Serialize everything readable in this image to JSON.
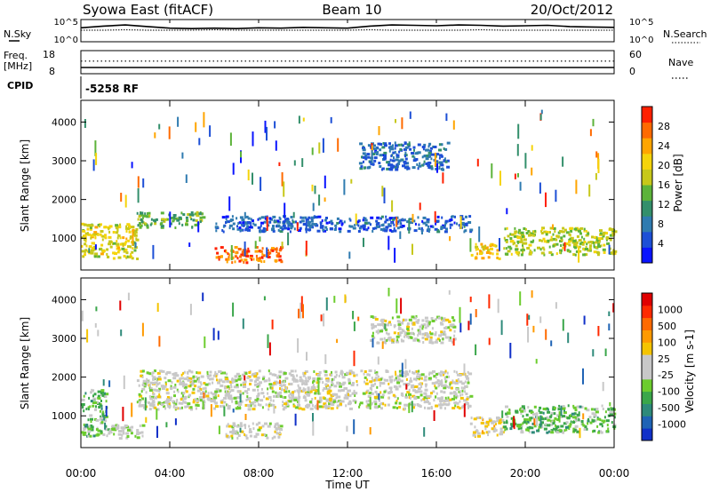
{
  "header": {
    "station": "Syowa East (fitACF)",
    "beam": "Beam 10",
    "date": "20/Oct/2012"
  },
  "side_labels": {
    "nsky": "N.Sky",
    "nsearch": "N.Search",
    "freq": "Freq.",
    "mhz": "[MHz]",
    "nave": "Nave",
    "cpid": "CPID",
    "cpid_value": "-5258 RF"
  },
  "chart_data": [
    {
      "type": "line",
      "panel": "noise",
      "ylabel_left": "N.Sky",
      "ylabel_right": "N.Search",
      "left_ticks": [
        "10^5",
        "10^0"
      ],
      "right_ticks": [
        "10^5",
        "10^0"
      ],
      "x": [
        0,
        1,
        2,
        3,
        4,
        5,
        6,
        7,
        8,
        9,
        10,
        11,
        12,
        13,
        14,
        15,
        16,
        17,
        18,
        19,
        20,
        21,
        22,
        23,
        24
      ],
      "nsky_log10": [
        3.2,
        3.6,
        3.9,
        3.5,
        3.1,
        3.0,
        3.1,
        3.0,
        3.2,
        3.1,
        3.3,
        3.2,
        3.1,
        3.6,
        3.9,
        3.8,
        3.7,
        3.9,
        3.8,
        3.6,
        3.7,
        3.8,
        3.5,
        3.4,
        3.3
      ],
      "nsearch_log10": [
        2.6,
        2.6,
        2.7,
        2.6,
        2.6,
        2.6,
        2.7,
        2.6,
        2.6,
        2.6,
        2.6,
        2.6,
        2.6,
        2.7,
        2.6,
        2.6,
        2.6,
        2.6,
        2.7,
        2.6,
        2.6,
        2.6,
        2.6,
        2.6,
        2.6
      ],
      "ylim_log10": [
        0,
        5
      ]
    },
    {
      "type": "line",
      "panel": "frequency",
      "ylabel_left": "Freq. [MHz]",
      "ylabel_right": "Nave",
      "left_ticks": [
        "18",
        "8"
      ],
      "right_ticks": [
        "60",
        "0"
      ],
      "freq_mhz": 10.5,
      "nave": 33,
      "freq_ylim": [
        8,
        18
      ],
      "nave_ylim": [
        0,
        60
      ]
    },
    {
      "type": "heatmap",
      "panel": "power",
      "ylabel": "Slant Range [km]",
      "yticks": [
        "4000",
        "3000",
        "2000",
        "1000"
      ],
      "ylim": [
        180,
        4560
      ],
      "colorbar_label": "Power [dB]",
      "colorbar_ticks": [
        "28",
        "24",
        "20",
        "16",
        "12",
        "8",
        "4"
      ],
      "colorbar_colors": [
        "#0a14ff",
        "#1d4fd6",
        "#2f7bb0",
        "#338f6b",
        "#5cb33a",
        "#c7c81a",
        "#f5d40b",
        "#ffa500",
        "#ff6a00",
        "#ff2000"
      ],
      "vmin": 0,
      "vmax": 32,
      "features": [
        {
          "t": [
            0.0,
            2.5
          ],
          "r": [
            500,
            1400
          ],
          "value": 19
        },
        {
          "t": [
            2.5,
            5.5
          ],
          "r": [
            1300,
            1700
          ],
          "value": 14
        },
        {
          "t": [
            6.0,
            9.0
          ],
          "r": [
            400,
            800
          ],
          "value": 27
        },
        {
          "t": [
            6.0,
            17.5
          ],
          "r": [
            1200,
            1600
          ],
          "value": 6
        },
        {
          "t": [
            12.5,
            16.5
          ],
          "r": [
            2800,
            3500
          ],
          "value": 7
        },
        {
          "t": [
            17.5,
            18.8
          ],
          "r": [
            500,
            900
          ],
          "value": 21
        },
        {
          "t": [
            19.0,
            24.0
          ],
          "r": [
            600,
            1300
          ],
          "value": 17
        }
      ]
    },
    {
      "type": "heatmap",
      "panel": "velocity",
      "ylabel": "Slant Range [km]",
      "yticks": [
        "4000",
        "3000",
        "2000",
        "1000"
      ],
      "ylim": [
        180,
        4560
      ],
      "colorbar_label": "Velocity [m s-1]",
      "colorbar_ticks": [
        "1000",
        "500",
        "100",
        "25",
        "-25",
        "-100",
        "-500",
        "-1000"
      ],
      "colorbar_colors": [
        "#1030c8",
        "#1f63b5",
        "#2e8a7a",
        "#3aa64a",
        "#6ccc2e",
        "#c8c8c8",
        "#c8c8c8",
        "#f5c400",
        "#ff9a00",
        "#ff6a00",
        "#ff2a00",
        "#e00000"
      ],
      "vmin": -1000,
      "vmax": 1000,
      "features": [
        {
          "t": [
            0.0,
            1.2
          ],
          "r": [
            500,
            1700
          ],
          "value": -300
        },
        {
          "t": [
            1.2,
            2.8
          ],
          "r": [
            450,
            800
          ],
          "value": -90
        },
        {
          "t": [
            2.5,
            17.5
          ],
          "r": [
            1200,
            2200
          ],
          "value": 0
        },
        {
          "t": [
            6.5,
            9.0
          ],
          "r": [
            450,
            850
          ],
          "value": 0
        },
        {
          "t": [
            13.0,
            16.8
          ],
          "r": [
            2900,
            3600
          ],
          "value": 0
        },
        {
          "t": [
            17.5,
            19.0
          ],
          "r": [
            500,
            1000
          ],
          "value": 120
        },
        {
          "t": [
            19.0,
            24.0
          ],
          "r": [
            600,
            1300
          ],
          "value": -300
        }
      ]
    }
  ],
  "xaxis": {
    "label": "Time UT",
    "ticks": [
      "00:00",
      "04:00",
      "08:00",
      "12:00",
      "16:00",
      "20:00",
      "00:00"
    ],
    "range_hours": [
      0,
      24
    ]
  }
}
